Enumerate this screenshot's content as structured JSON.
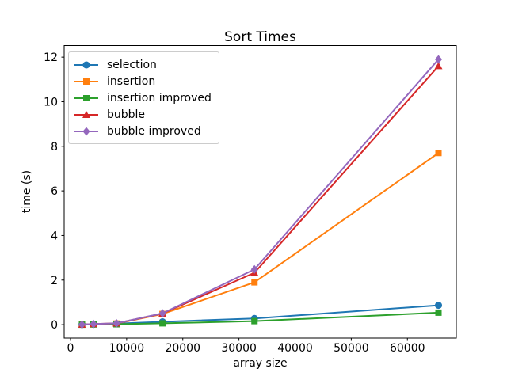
{
  "figure": {
    "title": "Sort Times",
    "xlabel": "array size",
    "ylabel": "time (s)"
  },
  "chart_data": {
    "type": "line",
    "title": "Sort Times",
    "xlabel": "array size",
    "ylabel": "time (s)",
    "x": [
      2048,
      4096,
      8192,
      16384,
      32768,
      65536
    ],
    "series": [
      {
        "name": "selection",
        "color": "#1f77b4",
        "marker": "circle",
        "values": [
          0.01,
          0.02,
          0.05,
          0.13,
          0.28,
          0.87
        ]
      },
      {
        "name": "insertion",
        "color": "#ff7f0e",
        "marker": "square",
        "values": [
          0.01,
          0.02,
          0.05,
          0.48,
          1.9,
          7.7
        ]
      },
      {
        "name": "insertion improved",
        "color": "#2ca02c",
        "marker": "square",
        "values": [
          0.0,
          0.01,
          0.02,
          0.06,
          0.16,
          0.54
        ]
      },
      {
        "name": "bubble",
        "color": "#d62728",
        "marker": "triangle",
        "values": [
          0.01,
          0.03,
          0.06,
          0.5,
          2.33,
          11.6
        ]
      },
      {
        "name": "bubble improved",
        "color": "#9467bd",
        "marker": "diamond",
        "values": [
          0.01,
          0.03,
          0.06,
          0.51,
          2.48,
          11.9
        ]
      }
    ],
    "xticks": [
      0,
      10000,
      20000,
      30000,
      40000,
      50000,
      60000
    ],
    "yticks": [
      0,
      2,
      4,
      6,
      8,
      10,
      12
    ],
    "xlim": [
      -1126,
      68710
    ],
    "ylim": [
      -0.6,
      12.52
    ],
    "legend_position": "upper left",
    "grid": false,
    "axes_color": "#000000",
    "background_color": "#ffffff"
  }
}
